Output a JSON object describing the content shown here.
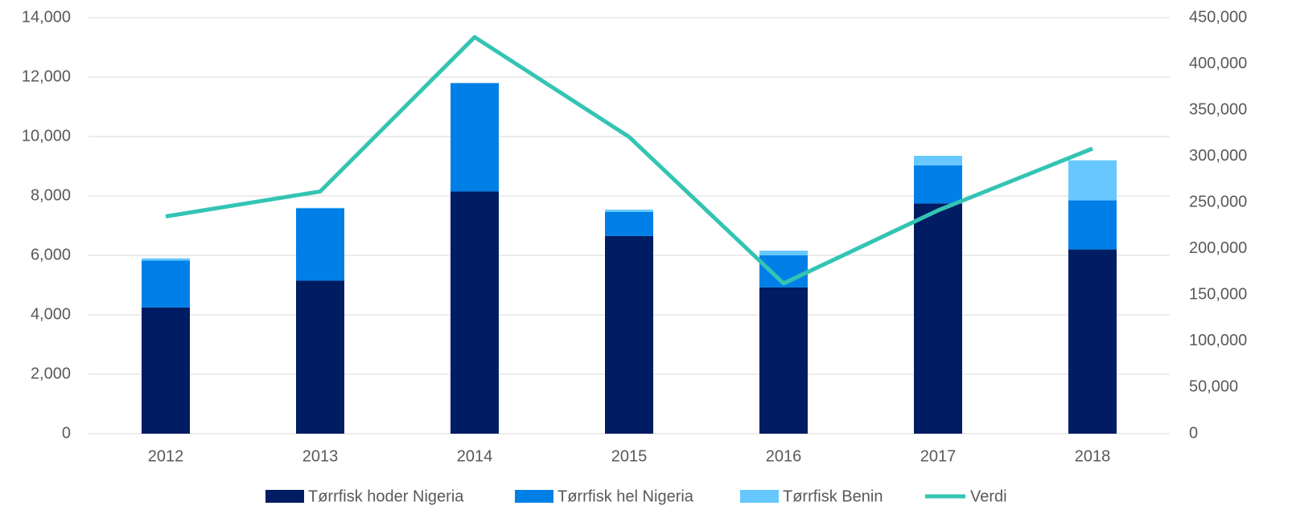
{
  "chart_data": {
    "type": "bar",
    "categories": [
      "2012",
      "2013",
      "2014",
      "2015",
      "2016",
      "2017",
      "2018"
    ],
    "series": [
      {
        "name": "Tørrfisk hoder Nigeria",
        "color": "#001c63",
        "type": "bar",
        "values": [
          4250,
          5150,
          8150,
          6650,
          4920,
          7750,
          6200
        ]
      },
      {
        "name": "Tørrfisk hel Nigeria",
        "color": "#0080e6",
        "type": "bar",
        "values": [
          1580,
          2430,
          3650,
          810,
          1080,
          1280,
          1650
        ]
      },
      {
        "name": "Tørrfisk Benin",
        "color": "#66c8ff",
        "type": "bar",
        "values": [
          70,
          20,
          0,
          80,
          160,
          320,
          1350
        ]
      },
      {
        "name": "Verdi",
        "color": "#33c4b4",
        "type": "line",
        "axis": "y2",
        "values": [
          235000,
          262000,
          429000,
          321000,
          162500,
          241500,
          308400
        ]
      }
    ],
    "stacked": true,
    "ylim": [
      0,
      14000
    ],
    "yticks": [
      0,
      {
        "value": 2000,
        "label": "2,000"
      },
      {
        "value": 4000,
        "label": "4,000"
      },
      {
        "value": 6000,
        "label": "6,000"
      },
      {
        "value": 8000,
        "label": "8,000"
      },
      {
        "value": 10000,
        "label": "10,000"
      },
      {
        "value": 12000,
        "label": "12,000"
      },
      {
        "value": 14000,
        "label": "14,000"
      }
    ],
    "y2lim": [
      0,
      450000
    ],
    "y2ticks": [
      0,
      {
        "value": 50000,
        "label": "50,000"
      },
      {
        "value": 100000,
        "label": "100,000"
      },
      {
        "value": 150000,
        "label": "150,000"
      },
      {
        "value": 200000,
        "label": "200,000"
      },
      {
        "value": 250000,
        "label": "250,000"
      },
      {
        "value": 300000,
        "label": "300,000"
      },
      {
        "value": 350000,
        "label": "350,000"
      },
      {
        "value": 400000,
        "label": "400,000"
      },
      {
        "value": 450000,
        "label": "450,000"
      }
    ],
    "grid": true,
    "legend": "bottom"
  }
}
